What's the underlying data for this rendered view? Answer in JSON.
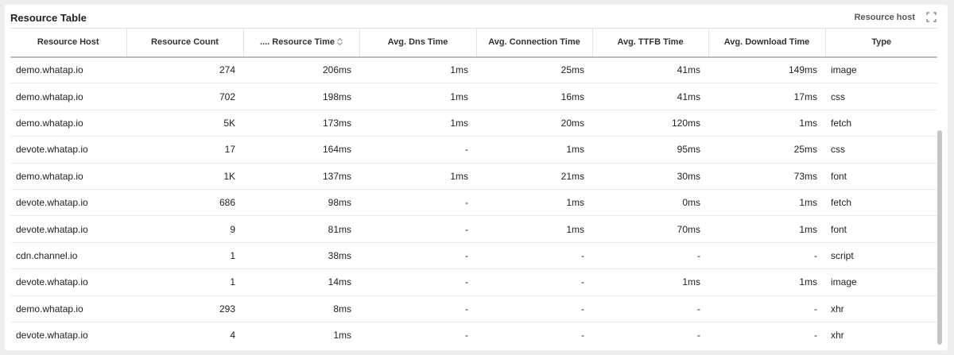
{
  "panel": {
    "title": "Resource Table",
    "host_filter_label": "Resource host",
    "expand_icon": "expand-icon"
  },
  "columns": [
    "Resource Host",
    "Resource Count",
    ".... Resource Time",
    "Avg. Dns Time",
    "Avg. Connection Time",
    "Avg. TTFB Time",
    "Avg. Download Time",
    "Type"
  ],
  "sort_icon": "sort-updown-icon",
  "rows": [
    [
      "demo.whatap.io",
      "274",
      "206ms",
      "1ms",
      "25ms",
      "41ms",
      "149ms",
      "image"
    ],
    [
      "demo.whatap.io",
      "702",
      "198ms",
      "1ms",
      "16ms",
      "41ms",
      "17ms",
      "css"
    ],
    [
      "demo.whatap.io",
      "5K",
      "173ms",
      "1ms",
      "20ms",
      "120ms",
      "1ms",
      "fetch"
    ],
    [
      "devote.whatap.io",
      "17",
      "164ms",
      "-",
      "1ms",
      "95ms",
      "25ms",
      "css"
    ],
    [
      "demo.whatap.io",
      "1K",
      "137ms",
      "1ms",
      "21ms",
      "30ms",
      "73ms",
      "font"
    ],
    [
      "devote.whatap.io",
      "686",
      "98ms",
      "-",
      "1ms",
      "0ms",
      "1ms",
      "fetch"
    ],
    [
      "devote.whatap.io",
      "9",
      "81ms",
      "-",
      "1ms",
      "70ms",
      "1ms",
      "font"
    ],
    [
      "cdn.channel.io",
      "1",
      "38ms",
      "-",
      "-",
      "-",
      "-",
      "script"
    ],
    [
      "devote.whatap.io",
      "1",
      "14ms",
      "-",
      "-",
      "1ms",
      "1ms",
      "image"
    ],
    [
      "demo.whatap.io",
      "293",
      "8ms",
      "-",
      "-",
      "-",
      "-",
      "xhr"
    ],
    [
      "devote.whatap.io",
      "4",
      "1ms",
      "-",
      "-",
      "-",
      "-",
      "xhr"
    ]
  ]
}
